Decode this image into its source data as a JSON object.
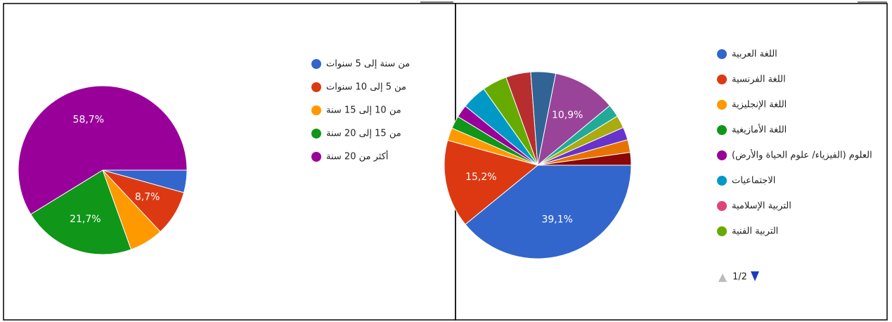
{
  "chart_data": [
    {
      "type": "pie",
      "categories": [
        "من سنة إلى 5 سنوات",
        "من 5 إلى 10 سنوات",
        "من 10 إلى 15 سنة",
        "من 15 إلى 20 سنة",
        "أكثر من 20 سنة"
      ],
      "values": [
        4.3,
        8.7,
        6.5,
        21.7,
        58.7
      ],
      "value_labels": [
        null,
        "8,7%",
        null,
        "21,7%",
        "58,7%"
      ],
      "colors": [
        "#3366cc",
        "#dc3912",
        "#ff9900",
        "#109618",
        "#990099"
      ]
    },
    {
      "type": "pie",
      "categories": [
        "اللغة العربية",
        "اللغة الفرنسية",
        "اللغة الإنجليزية",
        "اللغة الأمازيغية",
        "العلوم (الفيزياء/ علوم الحياة والأرض)",
        "الاجتماعيات",
        "التربية الإسلامية",
        "التربية الفنية",
        null,
        null,
        null,
        null,
        null,
        null,
        null,
        null
      ],
      "values": [
        39.1,
        15.2,
        2.2,
        2.2,
        2.2,
        4.3,
        0,
        4.3,
        4.3,
        4.3,
        10.9,
        2.2,
        2.2,
        2.2,
        2.2,
        2.2
      ],
      "value_labels": [
        "39,1%",
        "15,2%",
        null,
        null,
        null,
        null,
        null,
        null,
        null,
        null,
        "10,9%",
        null,
        null,
        null,
        null,
        null
      ],
      "colors": [
        "#3366cc",
        "#dc3912",
        "#ff9900",
        "#109618",
        "#990099",
        "#0099c6",
        "#dd4477",
        "#66aa00",
        "#b82e2e",
        "#316395",
        "#994499",
        "#22aa99",
        "#aaaa11",
        "#6633cc",
        "#e67300",
        "#8b0707"
      ],
      "legend_page": "1/2"
    }
  ]
}
